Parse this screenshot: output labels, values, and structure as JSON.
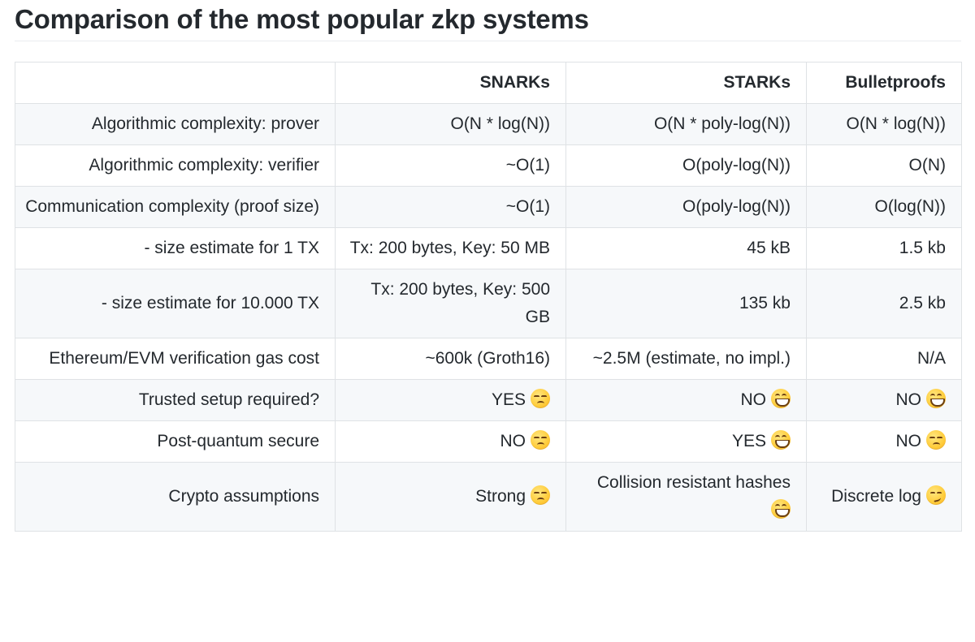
{
  "page": {
    "title": "Comparison of the most popular zkp systems"
  },
  "table": {
    "headers": [
      "",
      "SNARKs",
      "STARKs",
      "Bulletproofs"
    ],
    "rows": [
      {
        "label": "Algorithmic complexity: prover",
        "cells": [
          {
            "text": "O(N * log(N))",
            "emoji": ""
          },
          {
            "text": "O(N * poly-log(N))",
            "emoji": ""
          },
          {
            "text": "O(N * log(N))",
            "emoji": ""
          }
        ]
      },
      {
        "label": "Algorithmic complexity: verifier",
        "cells": [
          {
            "text": "~O(1)",
            "emoji": ""
          },
          {
            "text": "O(poly-log(N))",
            "emoji": ""
          },
          {
            "text": "O(N)",
            "emoji": ""
          }
        ]
      },
      {
        "label": "Communication complexity (proof size)",
        "cells": [
          {
            "text": "~O(1)",
            "emoji": ""
          },
          {
            "text": "O(poly-log(N))",
            "emoji": ""
          },
          {
            "text": "O(log(N))",
            "emoji": ""
          }
        ]
      },
      {
        "label": "- size estimate for 1 TX",
        "cells": [
          {
            "text": "Tx: 200 bytes, Key: 50 MB",
            "emoji": ""
          },
          {
            "text": "45 kB",
            "emoji": ""
          },
          {
            "text": "1.5 kb",
            "emoji": ""
          }
        ]
      },
      {
        "label": "- size estimate for 10.000 TX",
        "cells": [
          {
            "text": "Tx: 200 bytes, Key: 500 GB",
            "emoji": ""
          },
          {
            "text": "135 kb",
            "emoji": ""
          },
          {
            "text": "2.5 kb",
            "emoji": ""
          }
        ]
      },
      {
        "label": "Ethereum/EVM verification gas cost",
        "cells": [
          {
            "text": "~600k (Groth16)",
            "emoji": ""
          },
          {
            "text": "~2.5M (estimate, no impl.)",
            "emoji": ""
          },
          {
            "text": "N/A",
            "emoji": ""
          }
        ]
      },
      {
        "label": "Trusted setup required?",
        "cells": [
          {
            "text": "YES",
            "emoji": "unamused"
          },
          {
            "text": "NO",
            "emoji": "grin"
          },
          {
            "text": "NO",
            "emoji": "grin"
          }
        ]
      },
      {
        "label": "Post-quantum secure",
        "cells": [
          {
            "text": "NO",
            "emoji": "unamused"
          },
          {
            "text": "YES",
            "emoji": "grin"
          },
          {
            "text": "NO",
            "emoji": "unamused"
          }
        ]
      },
      {
        "label": "Crypto assumptions",
        "cells": [
          {
            "text": "Strong",
            "emoji": "unamused"
          },
          {
            "text": "Collision resistant hashes",
            "emoji": "grin"
          },
          {
            "text": "Discrete log",
            "emoji": "smirk"
          }
        ]
      }
    ]
  },
  "emoji_icons": {
    "unamused": "unamused-face-icon",
    "grin": "grinning-face-icon",
    "smirk": "smirking-face-icon"
  },
  "colors": {
    "border": "#dfe2e5",
    "stripe": "#f6f8fa",
    "text": "#24292e"
  }
}
